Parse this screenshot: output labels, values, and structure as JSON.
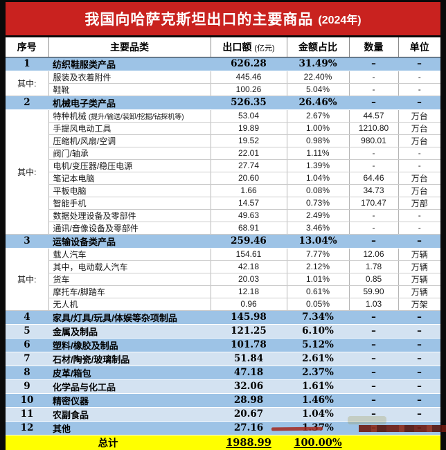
{
  "title": {
    "main": "我国向哈萨克斯坦出口的主要商品",
    "year": "(2024年)"
  },
  "colors": {
    "banner_red": "#c9221f",
    "row_blue": "#9dc3e6",
    "row_blue_light": "#d3e2f1",
    "total_yellow": "#ffff00",
    "frame_black": "#0a0a0a",
    "marker_red": "#a5281c"
  },
  "table": {
    "headers": [
      {
        "label": "序号"
      },
      {
        "label": "主要品类"
      },
      {
        "label": "出口额",
        "sub": "(亿元)"
      },
      {
        "label": "金额占比"
      },
      {
        "label": "数量"
      },
      {
        "label": "单位"
      }
    ],
    "rows": [
      {
        "kind": "main",
        "fill": "blue",
        "no": "1",
        "name": "纺织鞋服类产品",
        "export": "626.28",
        "share": "31.49%",
        "qty": "–",
        "unit": "–"
      },
      {
        "kind": "detail",
        "group": {
          "label": "其中:",
          "span": 2
        },
        "name": "服装及衣着附件",
        "export": "445.46",
        "share": "22.40%",
        "qty": "-",
        "unit": "-"
      },
      {
        "kind": "detail",
        "name": "鞋靴",
        "export": "100.26",
        "share": "5.04%",
        "qty": "-",
        "unit": "-"
      },
      {
        "kind": "main",
        "fill": "blue",
        "no": "2",
        "name": "机械电子类产品",
        "export": "526.35",
        "share": "26.46%",
        "qty": "–",
        "unit": "–"
      },
      {
        "kind": "detail",
        "group": {
          "label": "其中:",
          "span": 10
        },
        "name": "特种机械",
        "note": "(提升/输送/装卸/挖掘/钻探机等)",
        "export": "53.04",
        "share": "2.67%",
        "qty": "44.57",
        "unit": "万台"
      },
      {
        "kind": "detail",
        "name": "手提风电动工具",
        "export": "19.89",
        "share": "1.00%",
        "qty": "1210.80",
        "unit": "万台"
      },
      {
        "kind": "detail",
        "name": "压缩机/风扇/空调",
        "export": "19.52",
        "share": "0.98%",
        "qty": "980.01",
        "unit": "万台"
      },
      {
        "kind": "detail",
        "name": "阀门/轴承",
        "export": "22.01",
        "share": "1.11%",
        "qty": "-",
        "unit": "-"
      },
      {
        "kind": "detail",
        "name": "电机/变压器/稳压电源",
        "export": "27.74",
        "share": "1.39%",
        "qty": "-",
        "unit": "-"
      },
      {
        "kind": "detail",
        "name": "笔记本电脑",
        "export": "20.60",
        "share": "1.04%",
        "qty": "64.46",
        "unit": "万台"
      },
      {
        "kind": "detail",
        "name": "平板电脑",
        "export": "1.66",
        "share": "0.08%",
        "qty": "34.73",
        "unit": "万台"
      },
      {
        "kind": "detail",
        "name": "智能手机",
        "export": "14.57",
        "share": "0.73%",
        "qty": "170.47",
        "unit": "万部"
      },
      {
        "kind": "detail",
        "name": "数据处理设备及零部件",
        "export": "49.63",
        "share": "2.49%",
        "qty": "-",
        "unit": "-"
      },
      {
        "kind": "detail",
        "name": "通讯/音像设备及零部件",
        "export": "68.91",
        "share": "3.46%",
        "qty": "-",
        "unit": "-"
      },
      {
        "kind": "main",
        "fill": "blue",
        "no": "3",
        "name": "运输设备类产品",
        "export": "259.46",
        "share": "13.04%",
        "qty": "–",
        "unit": "–"
      },
      {
        "kind": "detail",
        "group": {
          "label": "其中:",
          "span": 5
        },
        "name": "载人汽车",
        "export": "154.61",
        "share": "7.77%",
        "qty": "12.06",
        "unit": "万辆"
      },
      {
        "kind": "detail",
        "name": "其中，电动载人汽车",
        "export": "42.18",
        "share": "2.12%",
        "qty": "1.78",
        "unit": "万辆"
      },
      {
        "kind": "detail",
        "name": "货车",
        "export": "20.03",
        "share": "1.01%",
        "qty": "0.85",
        "unit": "万辆"
      },
      {
        "kind": "detail",
        "name": "摩托车/脚踏车",
        "export": "12.18",
        "share": "0.61%",
        "qty": "59.90",
        "unit": "万辆"
      },
      {
        "kind": "detail",
        "name": "无人机",
        "export": "0.96",
        "share": "0.05%",
        "qty": "1.03",
        "unit": "万架"
      },
      {
        "kind": "main",
        "fill": "blue",
        "no": "4",
        "name": "家具/灯具/玩具/体娱等杂项制品",
        "export": "145.98",
        "share": "7.34%",
        "qty": "–",
        "unit": "–"
      },
      {
        "kind": "main",
        "fill": "light",
        "no": "5",
        "name": "金属及制品",
        "export": "121.25",
        "share": "6.10%",
        "qty": "–",
        "unit": "–"
      },
      {
        "kind": "main",
        "fill": "blue",
        "no": "6",
        "name": "塑料/橡胶及制品",
        "export": "101.78",
        "share": "5.12%",
        "qty": "–",
        "unit": "–"
      },
      {
        "kind": "main",
        "fill": "light",
        "no": "7",
        "name": "石材/陶瓷/玻璃制品",
        "export": "51.84",
        "share": "2.61%",
        "qty": "–",
        "unit": "–"
      },
      {
        "kind": "main",
        "fill": "blue",
        "no": "8",
        "name": "皮革/箱包",
        "export": "47.18",
        "share": "2.37%",
        "qty": "–",
        "unit": "–"
      },
      {
        "kind": "main",
        "fill": "light",
        "no": "9",
        "name": "化学品与化工品",
        "export": "32.06",
        "share": "1.61%",
        "qty": "–",
        "unit": "–"
      },
      {
        "kind": "main",
        "fill": "blue",
        "no": "10",
        "name": "精密仪器",
        "export": "28.98",
        "share": "1.46%",
        "qty": "–",
        "unit": "–"
      },
      {
        "kind": "main",
        "fill": "light",
        "no": "11",
        "name": "农副食品",
        "export": "20.67",
        "share": "1.04%",
        "qty": "–",
        "unit": "–"
      },
      {
        "kind": "main",
        "fill": "blue",
        "no": "12",
        "name": "其他",
        "export": "27.16",
        "share": "1.37%",
        "qty": "–",
        "unit": "–"
      }
    ],
    "total": {
      "label": "总计",
      "export": "1988.99",
      "share": "100.00%"
    }
  },
  "chart_data": {
    "type": "table",
    "title": "我国向哈萨克斯坦出口的主要商品 (2024年)",
    "columns": [
      "序号",
      "主要品类",
      "出口额(亿元)",
      "金额占比",
      "数量",
      "单位"
    ],
    "rows": [
      [
        "1",
        "纺织鞋服类产品",
        "626.28",
        "31.49%",
        "-",
        "-"
      ],
      [
        "其中:",
        "服装及衣着附件",
        "445.46",
        "22.40%",
        "-",
        "-"
      ],
      [
        "其中:",
        "鞋靴",
        "100.26",
        "5.04%",
        "-",
        "-"
      ],
      [
        "2",
        "机械电子类产品",
        "526.35",
        "26.46%",
        "-",
        "-"
      ],
      [
        "其中:",
        "特种机械 (提升/输送/装卸/挖掘/钻探机等)",
        "53.04",
        "2.67%",
        "44.57",
        "万台"
      ],
      [
        "其中:",
        "手提风电动工具",
        "19.89",
        "1.00%",
        "1210.80",
        "万台"
      ],
      [
        "其中:",
        "压缩机/风扇/空调",
        "19.52",
        "0.98%",
        "980.01",
        "万台"
      ],
      [
        "其中:",
        "阀门/轴承",
        "22.01",
        "1.11%",
        "-",
        "-"
      ],
      [
        "其中:",
        "电机/变压器/稳压电源",
        "27.74",
        "1.39%",
        "-",
        "-"
      ],
      [
        "其中:",
        "笔记本电脑",
        "20.60",
        "1.04%",
        "64.46",
        "万台"
      ],
      [
        "其中:",
        "平板电脑",
        "1.66",
        "0.08%",
        "34.73",
        "万台"
      ],
      [
        "其中:",
        "智能手机",
        "14.57",
        "0.73%",
        "170.47",
        "万部"
      ],
      [
        "其中:",
        "数据处理设备及零部件",
        "49.63",
        "2.49%",
        "-",
        "-"
      ],
      [
        "其中:",
        "通讯/音像设备及零部件",
        "68.91",
        "3.46%",
        "-",
        "-"
      ],
      [
        "3",
        "运输设备类产品",
        "259.46",
        "13.04%",
        "-",
        "-"
      ],
      [
        "其中:",
        "载人汽车",
        "154.61",
        "7.77%",
        "12.06",
        "万辆"
      ],
      [
        "其中:",
        "其中，电动载人汽车",
        "42.18",
        "2.12%",
        "1.78",
        "万辆"
      ],
      [
        "其中:",
        "货车",
        "20.03",
        "1.01%",
        "0.85",
        "万辆"
      ],
      [
        "其中:",
        "摩托车/脚踏车",
        "12.18",
        "0.61%",
        "59.90",
        "万辆"
      ],
      [
        "其中:",
        "无人机",
        "0.96",
        "0.05%",
        "1.03",
        "万架"
      ],
      [
        "4",
        "家具/灯具/玩具/体娱等杂项制品",
        "145.98",
        "7.34%",
        "-",
        "-"
      ],
      [
        "5",
        "金属及制品",
        "121.25",
        "6.10%",
        "-",
        "-"
      ],
      [
        "6",
        "塑料/橡胶及制品",
        "101.78",
        "5.12%",
        "-",
        "-"
      ],
      [
        "7",
        "石材/陶瓷/玻璃制品",
        "51.84",
        "2.61%",
        "-",
        "-"
      ],
      [
        "8",
        "皮革/箱包",
        "47.18",
        "2.37%",
        "-",
        "-"
      ],
      [
        "9",
        "化学品与化工品",
        "32.06",
        "1.61%",
        "-",
        "-"
      ],
      [
        "10",
        "精密仪器",
        "28.98",
        "1.46%",
        "-",
        "-"
      ],
      [
        "11",
        "农副食品",
        "20.67",
        "1.04%",
        "-",
        "-"
      ],
      [
        "12",
        "其他",
        "27.16",
        "1.37%",
        "-",
        "-"
      ],
      [
        "",
        "总计",
        "1988.99",
        "100.00%",
        "-",
        "-"
      ]
    ]
  }
}
